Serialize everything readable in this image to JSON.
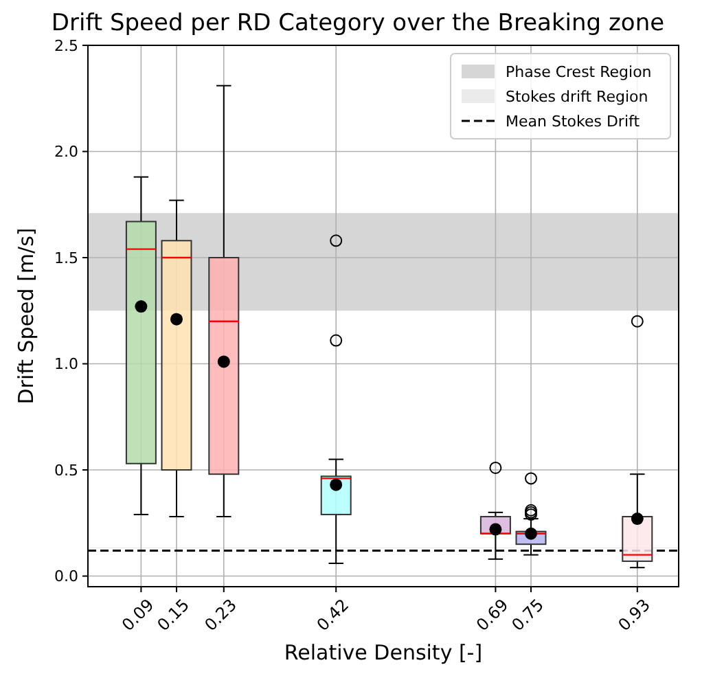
{
  "chart_data": {
    "type": "box",
    "title": "Drift Speed per RD Category over the Breaking zone",
    "xlabel": "Relative Density [-]",
    "ylabel": "Drift Speed [m/s]",
    "x": [
      0.09,
      0.15,
      0.23,
      0.42,
      0.69,
      0.75,
      0.93
    ],
    "colors": [
      "#b4dcaa",
      "#ffe2b0",
      "#ffb0b0",
      "#b0ffff",
      "#d8b4dc",
      "#b4b4f0",
      "#fde6ea"
    ],
    "boxes": [
      {
        "low": 0.29,
        "q1": 0.53,
        "median": 1.54,
        "q3": 1.67,
        "high": 1.88,
        "mean": 1.27
      },
      {
        "low": 0.28,
        "q1": 0.5,
        "median": 1.5,
        "q3": 1.58,
        "high": 1.77,
        "mean": 1.21
      },
      {
        "low": 0.28,
        "q1": 0.48,
        "median": 1.2,
        "q3": 1.5,
        "high": 2.31,
        "mean": 1.01
      },
      {
        "low": 0.06,
        "q1": 0.29,
        "median": 0.46,
        "q3": 0.47,
        "high": 0.55,
        "mean": 0.43,
        "outliers": [
          1.58,
          1.11
        ]
      },
      {
        "low": 0.08,
        "q1": 0.2,
        "median": 0.2,
        "q3": 0.28,
        "high": 0.3,
        "mean": 0.22,
        "outliers": [
          0.51
        ]
      },
      {
        "low": 0.1,
        "q1": 0.15,
        "median": 0.2,
        "q3": 0.21,
        "high": 0.27,
        "mean": 0.2,
        "outliers": [
          0.46,
          0.31,
          0.3,
          0.29
        ]
      },
      {
        "low": 0.04,
        "q1": 0.07,
        "median": 0.1,
        "q3": 0.28,
        "high": 0.48,
        "mean": 0.27,
        "outliers": [
          1.2
        ]
      }
    ],
    "xlim": [
      0,
      1
    ],
    "xticks": [
      0.09,
      0.15,
      0.23,
      0.42,
      0.69,
      0.75,
      0.93
    ],
    "ylim": [
      -0.05,
      2.5
    ],
    "yticks": [
      {
        "value": 0,
        "label": "0.0"
      },
      {
        "value": 0.5,
        "label": "0.5"
      },
      {
        "value": 1,
        "label": "1.0"
      },
      {
        "value": 1.5,
        "label": "1.5"
      },
      {
        "value": 2,
        "label": "2.0"
      },
      {
        "value": 2.5,
        "label": "2.5"
      }
    ],
    "bands": [
      {
        "axis": "y",
        "from": 1.25,
        "to": 1.71,
        "label": "Phase Crest Region",
        "color": "#d6d6d6"
      },
      {
        "axis": "y",
        "from": 0.13,
        "to": 0.135,
        "label": "Stokes drift Region",
        "color": "#ebebeb"
      }
    ],
    "ref_lines": [
      {
        "axis": "y",
        "value": 0.12,
        "label": "Mean Stokes Drift",
        "color": "#000000",
        "line_style": "dashed"
      }
    ],
    "grid": true,
    "legend": "top right"
  }
}
